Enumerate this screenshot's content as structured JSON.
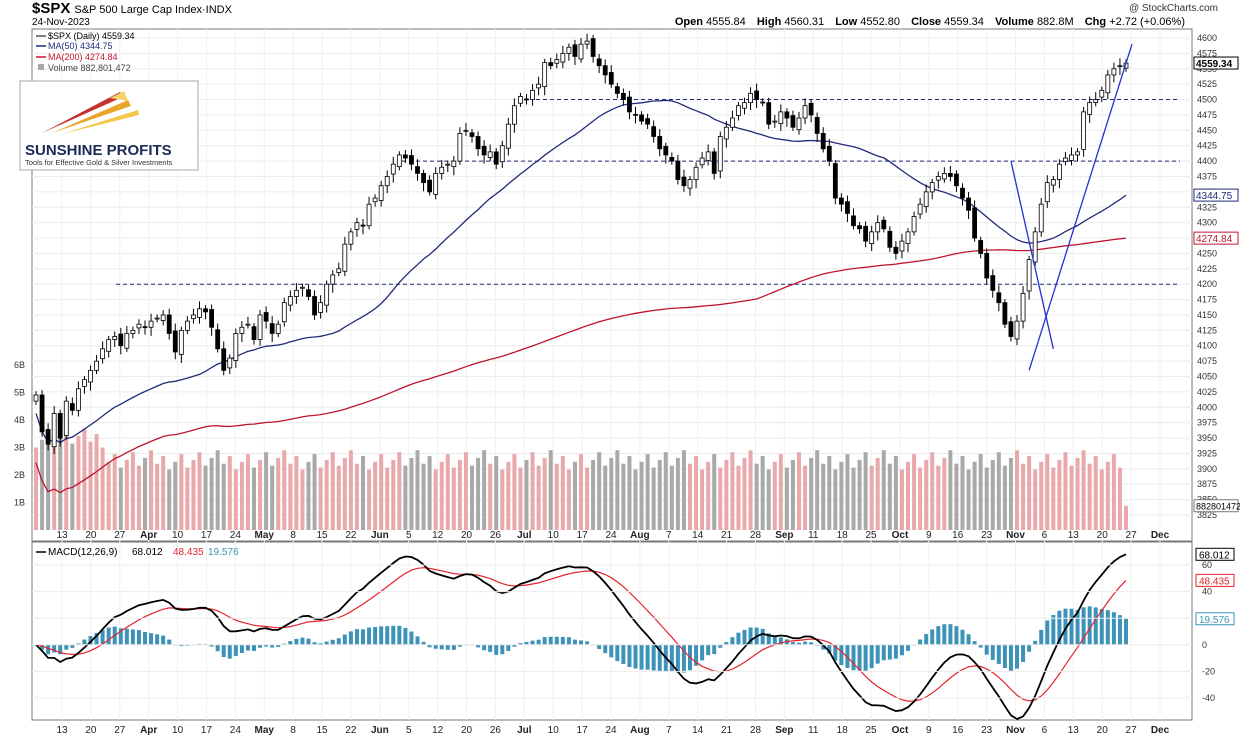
{
  "header": {
    "symbol": "$SPX",
    "description": "S&P 500 Large Cap Index",
    "exchange": "INDX",
    "date": "24-Nov-2023",
    "credit": "@ StockCharts.com",
    "open_label": "Open",
    "open": "4555.84",
    "high_label": "High",
    "high": "4560.31",
    "low_label": "Low",
    "low": "4552.80",
    "close_label": "Close",
    "close": "4559.34",
    "volume_label": "Volume",
    "volume": "882.8M",
    "chg_label": "Chg",
    "chg": "+2.72 (+0.06%)"
  },
  "legend": {
    "price": "$SPX (Daily) 4559.34",
    "ma50": "MA(50) 4344.75",
    "ma200": "MA(200) 4274.84",
    "volume": "Volume 882,801,472"
  },
  "logo": {
    "name": "SUNSHINE PROFITS",
    "tagline": "Tools for Effective Gold & Silver Investments"
  },
  "macd_legend": {
    "label": "MACD(12,26,9)",
    "macd": "68.012",
    "signal": "48.435",
    "hist": "19.576"
  },
  "colors": {
    "up": "#ffffff",
    "down": "#000000",
    "ma50": "#1f2a7a",
    "ma200": "#c0142e",
    "vol_up": "#e9a9ab",
    "vol_down": "#a9a9a9",
    "trendline": "#2130d0",
    "hist": "#3d92b8",
    "signal": "#e3242b",
    "level": "#1f2a7a"
  },
  "chart_data": {
    "type": "candlestick",
    "x_tick_labels": [
      "13",
      "20",
      "27",
      "Apr",
      "10",
      "17",
      "24",
      "May",
      "8",
      "15",
      "22",
      "Jun",
      "5",
      "12",
      "20",
      "26",
      "Jul",
      "10",
      "17",
      "24",
      "Aug",
      "7",
      "14",
      "21",
      "28",
      "Sep",
      "11",
      "18",
      "25",
      "Oct",
      "9",
      "16",
      "23",
      "Nov",
      "6",
      "13",
      "20",
      "27",
      "Dec"
    ],
    "y_ticks": [
      3825,
      3850,
      3875,
      3900,
      3925,
      3950,
      3975,
      4000,
      4025,
      4050,
      4075,
      4100,
      4125,
      4150,
      4175,
      4200,
      4225,
      4250,
      4275,
      4300,
      4325,
      4350,
      4375,
      4400,
      4425,
      4450,
      4475,
      4500,
      4525,
      4550,
      4575,
      4600
    ],
    "volume_ticks": [
      "1B",
      "2B",
      "3B",
      "4B",
      "5B",
      "6B"
    ],
    "price_markers": [
      "4559.34",
      "4344.75",
      "4274.84"
    ],
    "volume_marker": "882801472",
    "horizontal_levels": [
      4500,
      4400,
      4200
    ],
    "closes": [
      4020,
      3960,
      3940,
      3990,
      3950,
      4010,
      3995,
      4030,
      4045,
      4060,
      4075,
      4095,
      4110,
      4115,
      4100,
      4120,
      4125,
      4135,
      4130,
      4140,
      4145,
      4150,
      4120,
      4090,
      4125,
      4140,
      4150,
      4160,
      4155,
      4130,
      4095,
      4060,
      4080,
      4120,
      4130,
      4135,
      4110,
      4150,
      4140,
      4120,
      4135,
      4170,
      4180,
      4190,
      4195,
      4180,
      4150,
      4170,
      4200,
      4215,
      4225,
      4265,
      4285,
      4300,
      4295,
      4330,
      4340,
      4360,
      4375,
      4395,
      4410,
      4405,
      4395,
      4380,
      4365,
      4350,
      4380,
      4390,
      4395,
      4400,
      4445,
      4450,
      4440,
      4420,
      4410,
      4415,
      4395,
      4425,
      4460,
      4490,
      4505,
      4500,
      4515,
      4525,
      4560,
      4555,
      4565,
      4575,
      4585,
      4570,
      4590,
      4595,
      4570,
      4555,
      4540,
      4525,
      4510,
      4500,
      4480,
      4475,
      4465,
      4460,
      4440,
      4420,
      4410,
      4400,
      4370,
      4360,
      4370,
      4390,
      4405,
      4415,
      4380,
      4440,
      4455,
      4470,
      4490,
      4495,
      4510,
      4500,
      4495,
      4460,
      4465,
      4480,
      4470,
      4455,
      4470,
      4490,
      4475,
      4445,
      4420,
      4400,
      4340,
      4330,
      4315,
      4295,
      4290,
      4270,
      4285,
      4300,
      4290,
      4260,
      4250,
      4270,
      4285,
      4310,
      4330,
      4350,
      4365,
      4375,
      4380,
      4375,
      4360,
      4340,
      4320,
      4275,
      4250,
      4210,
      4190,
      4170,
      4135,
      4115,
      4140,
      4185,
      4240,
      4285,
      4330,
      4365,
      4370,
      4395,
      4405,
      4410,
      4415,
      4480,
      4495,
      4500,
      4515,
      4540,
      4550,
      4555,
      4559.34
    ],
    "ma50_end": 4344.75,
    "ma200_end": 4274.84,
    "volume_last": 882801472,
    "macd_y_ticks": [
      -40,
      -20,
      0,
      20,
      40,
      60
    ],
    "macd_end": 68.012,
    "signal_end": 48.435,
    "hist_end": 19.576
  }
}
